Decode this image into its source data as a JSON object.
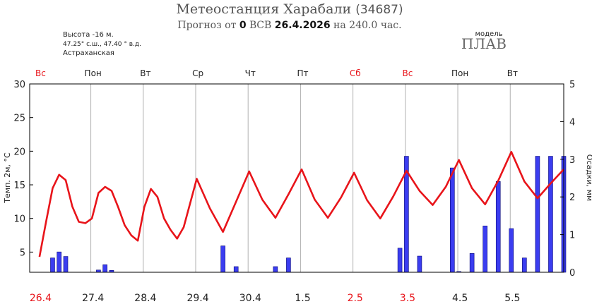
{
  "header": {
    "title_prefix": "Метеостанция Харабали",
    "title_code": "(34687)",
    "subtitle_a": "Прогноз от",
    "subtitle_hour": "0",
    "subtitle_b": "ВСВ",
    "subtitle_date": "26.4.2026",
    "subtitle_c": "на 240.0 час."
  },
  "station": {
    "altitude": "Высота -16 м.",
    "coords": "47.25° с.ш., 47.40 ° в.д.",
    "region": "Астраханская"
  },
  "model": {
    "label": "модель",
    "name": "ПЛАВ"
  },
  "colors": {
    "temperature_line": "#e8141a",
    "precip_bar": "#3b3df0",
    "precip_bar_edge": "#0a0a7a",
    "weekend_label": "#e8141a",
    "grid": "#b0b0b0"
  },
  "chart_data": {
    "type": "line+bar",
    "xlabel": "",
    "ylabel_left": "Темп. 2м, °С",
    "ylabel_right": "Осадки, мм",
    "ylim_left": [
      2,
      30
    ],
    "ylim_right": [
      0,
      5
    ],
    "yticks_left": [
      5,
      10,
      15,
      20,
      25,
      30
    ],
    "yticks_right": [
      0,
      1,
      2,
      3,
      4,
      5
    ],
    "x_range_hours": [
      -4.5,
      240
    ],
    "days": [
      {
        "weekday": "Вс",
        "date": "26.4",
        "weekend": true
      },
      {
        "weekday": "Пон",
        "date": "27.4",
        "weekend": false
      },
      {
        "weekday": "Вт",
        "date": "28.4",
        "weekend": false
      },
      {
        "weekday": "Ср",
        "date": "29.4",
        "weekend": false
      },
      {
        "weekday": "Чт",
        "date": "30.4",
        "weekend": false
      },
      {
        "weekday": "Пт",
        "date": "1.5",
        "weekend": false
      },
      {
        "weekday": "Сб",
        "date": "2.5",
        "weekend": true
      },
      {
        "weekday": "Вс",
        "date": "3.5",
        "weekend": true
      },
      {
        "weekday": "Пон",
        "date": "4.5",
        "weekend": false
      },
      {
        "weekday": "Вт",
        "date": "5.5",
        "weekend": false
      }
    ],
    "series": [
      {
        "kind": "line",
        "axis": "left",
        "hours": [
          0,
          3,
          6,
          9,
          12,
          15,
          18,
          21,
          24,
          27,
          30,
          33,
          36,
          39,
          42,
          45,
          48,
          51,
          54,
          57,
          60,
          63,
          66,
          72,
          78,
          84,
          90,
          96,
          102,
          108,
          114,
          120,
          126,
          132,
          138,
          144,
          150,
          156,
          162,
          168,
          174,
          180,
          186,
          192,
          198,
          204,
          210,
          216,
          222,
          228,
          234,
          240
        ],
        "values": [
          4.3,
          9.5,
          14.5,
          16.5,
          15.7,
          11.8,
          9.5,
          9.3,
          10.0,
          13.8,
          14.7,
          14.1,
          11.7,
          9.0,
          7.5,
          6.7,
          11.7,
          14.4,
          13.2,
          10.0,
          8.3,
          7.0,
          8.7,
          15.9,
          11.5,
          8.0,
          12.5,
          17.0,
          12.8,
          10.1,
          13.6,
          17.3,
          12.8,
          10.1,
          13.1,
          16.8,
          12.7,
          10.0,
          13.3,
          17.1,
          14.1,
          12.0,
          14.7,
          18.7,
          14.5,
          12.1,
          15.6,
          19.9,
          15.5,
          13.0,
          15.2,
          17.3
        ]
      },
      {
        "kind": "bar",
        "axis": "right",
        "hours": [
          6,
          9,
          12,
          27,
          30,
          33,
          84,
          90,
          108,
          114,
          165,
          168,
          174,
          189,
          192,
          198,
          204,
          210,
          216,
          222,
          228,
          234,
          240
        ],
        "values": [
          0.38,
          0.54,
          0.42,
          0.06,
          0.2,
          0.05,
          0.7,
          0.15,
          0.15,
          0.38,
          0.64,
          3.08,
          0.43,
          2.77,
          0.02,
          0.5,
          1.23,
          2.41,
          1.16,
          0.38,
          3.08,
          3.08,
          3.08
        ]
      }
    ]
  }
}
